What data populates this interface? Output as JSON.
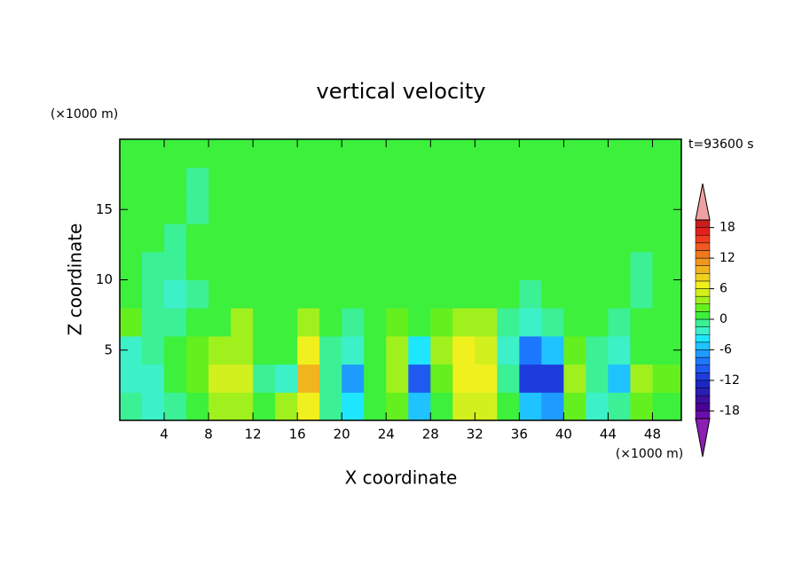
{
  "chart_data": {
    "type": "contour",
    "title": "vertical velocity",
    "x_label": "X coordinate",
    "y_label": "Z coordinate",
    "x_unit_label": "(×1000 m)",
    "y_unit_label": "(×1000 m)",
    "time_label": "t=93600 s",
    "xlim": [
      0,
      50.6
    ],
    "ylim": [
      0,
      20
    ],
    "xticks": [
      4,
      8,
      12,
      16,
      20,
      24,
      28,
      32,
      36,
      40,
      44,
      48
    ],
    "yticks": [
      5,
      10,
      15
    ],
    "x": [
      1,
      3,
      5,
      7,
      9,
      11,
      13,
      15,
      17,
      19,
      21,
      23,
      25,
      27,
      29,
      31,
      33,
      35,
      37,
      39,
      41,
      43,
      45,
      47,
      49
    ],
    "y": [
      1,
      3,
      5,
      7,
      9,
      11,
      13,
      15,
      17,
      19
    ],
    "z": [
      [
        -1,
        -3,
        -1,
        0,
        3,
        3,
        0,
        4,
        6,
        -1,
        -4,
        1,
        2,
        -6,
        1,
        5,
        5,
        0,
        -6,
        -7,
        2,
        -2,
        -1,
        2,
        1
      ],
      [
        -3,
        -3,
        0,
        2,
        5,
        5,
        -1,
        -2,
        9,
        -1,
        -7,
        0,
        4,
        -10,
        2,
        7,
        7,
        -1,
        -12,
        -12,
        3,
        -1,
        -5,
        3,
        2
      ],
      [
        -2,
        -1,
        0,
        2,
        3,
        3,
        0,
        1,
        6,
        -1,
        -3,
        1,
        3,
        -4,
        3,
        6,
        5,
        -2,
        -8,
        -5,
        2,
        -1,
        -2,
        1,
        1
      ],
      [
        2,
        -1,
        -1,
        0,
        1,
        4,
        1,
        1,
        3,
        0,
        -1,
        1,
        2,
        0,
        2,
        4,
        3,
        -1,
        -2,
        -1,
        1,
        0,
        -1,
        0,
        1
      ],
      [
        1,
        -1,
        -2,
        -1,
        0,
        1,
        1,
        0,
        1,
        0,
        0,
        1,
        0,
        1,
        1,
        1,
        1,
        0,
        -1,
        0,
        0,
        0,
        0,
        -1,
        0
      ],
      [
        0,
        -1,
        -1,
        0,
        0,
        1,
        1,
        0,
        1,
        1,
        0,
        1,
        0,
        1,
        1,
        0,
        0,
        1,
        0,
        0,
        0,
        1,
        0,
        -1,
        0
      ],
      [
        1,
        0,
        -1,
        0,
        0,
        1,
        1,
        0,
        1,
        0,
        1,
        0,
        0,
        1,
        0,
        1,
        1,
        0,
        1,
        0,
        1,
        0,
        0,
        1,
        0
      ],
      [
        1,
        0,
        0,
        -1,
        1,
        1,
        1,
        1,
        1,
        0,
        1,
        0,
        1,
        0,
        1,
        0,
        1,
        0,
        1,
        1,
        0,
        1,
        0,
        0,
        1
      ],
      [
        0,
        1,
        0,
        -1,
        0,
        1,
        0,
        1,
        1,
        0,
        1,
        0,
        1,
        1,
        0,
        0,
        0,
        1,
        0,
        1,
        0,
        1,
        0,
        1,
        0
      ],
      [
        1,
        0,
        1,
        0,
        1,
        1,
        0,
        1,
        1,
        0,
        1,
        0,
        1,
        1,
        0,
        0,
        0,
        1,
        1,
        1,
        0,
        1,
        1,
        0,
        1
      ]
    ],
    "clim": [
      -19.5,
      19.5
    ],
    "cticks": [
      -18,
      -12,
      -6,
      0,
      6,
      12,
      18
    ],
    "colors": [
      "#6a0dad",
      "#4b0096",
      "#3c10a0",
      "#2a1eb4",
      "#1a28c8",
      "#1e3cdc",
      "#1e5af0",
      "#1e78ff",
      "#1e9bff",
      "#1ec3ff",
      "#1ee6ff",
      "#3cf0c8",
      "#3cf096",
      "#3cf03c",
      "#64f01e",
      "#a0f01e",
      "#d2f01e",
      "#f0f01e",
      "#f0d21e",
      "#f0b41e",
      "#f0961e",
      "#f0781e",
      "#f05a1e",
      "#f03c1e",
      "#e61e1e",
      "#c81e1e"
    ],
    "over_color": "#f0a0a0",
    "under_color": "#8c1eb4"
  }
}
